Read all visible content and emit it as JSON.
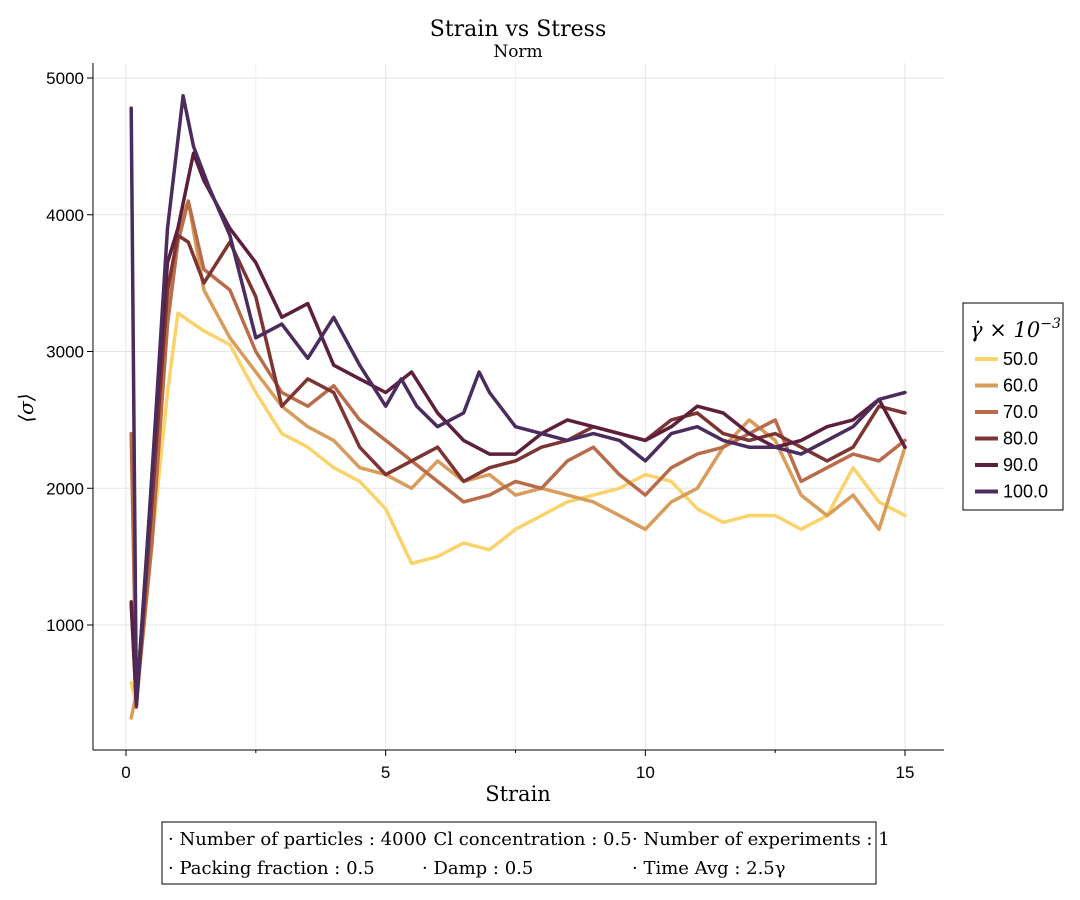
{
  "chart_data": {
    "type": "line",
    "title": "Strain vs Stress",
    "subtitle": "Norm",
    "xlabel": "Strain",
    "ylabel": "⟨σ⟩",
    "xlim": [
      -1.2,
      15.2
    ],
    "ylim": [
      1000,
      5000
    ],
    "x_ticks": [
      "0",
      "5",
      "10",
      "15"
    ],
    "y_ticks": [
      "1000",
      "2000",
      "3000",
      "4000",
      "5000"
    ],
    "grid": true,
    "legend_position": "right",
    "legend_title_main": "γ̇ × 10",
    "legend_title_exp": "−3",
    "series": [
      {
        "name": "50.0",
        "color": "#fbd36b",
        "x": [
          0.1,
          0.2,
          0.5,
          0.8,
          1.0,
          1.5,
          2.0,
          2.5,
          3.0,
          3.5,
          4.0,
          4.5,
          5.0,
          5.5,
          6.0,
          6.5,
          7.0,
          7.5,
          8.0,
          8.5,
          9.0,
          9.5,
          10.0,
          10.5,
          11.0,
          11.5,
          12.0,
          12.5,
          13.0,
          13.5,
          14.0,
          14.5,
          15.0
        ],
        "values": [
          580,
          420,
          1600,
          2700,
          3280,
          3150,
          3050,
          2700,
          2400,
          2300,
          2150,
          2050,
          1850,
          1450,
          1500,
          1600,
          1550,
          1700,
          1800,
          1900,
          1950,
          2000,
          2100,
          2050,
          1850,
          1750,
          1800,
          1800,
          1700,
          1800,
          2150,
          1900,
          1800
        ]
      },
      {
        "name": "60.0",
        "color": "#d89d5a",
        "x": [
          0.1,
          0.2,
          0.5,
          0.8,
          1.0,
          1.2,
          1.5,
          2.0,
          2.5,
          3.0,
          3.5,
          4.0,
          4.5,
          5.0,
          5.5,
          6.0,
          6.5,
          7.0,
          7.5,
          8.0,
          8.5,
          9.0,
          9.5,
          10.0,
          10.5,
          11.0,
          11.5,
          12.0,
          12.5,
          13.0,
          13.5,
          14.0,
          14.5,
          15.0
        ],
        "values": [
          320,
          500,
          1800,
          3300,
          3900,
          4100,
          3450,
          3100,
          2850,
          2600,
          2450,
          2350,
          2150,
          2100,
          2000,
          2200,
          2050,
          2100,
          1950,
          2000,
          1950,
          1900,
          1800,
          1700,
          1900,
          2000,
          2300,
          2500,
          2350,
          1950,
          1800,
          1950,
          1700,
          2300
        ]
      },
      {
        "name": "70.0",
        "color": "#b96c4b",
        "x": [
          0.1,
          0.2,
          0.5,
          0.8,
          1.0,
          1.2,
          1.5,
          2.0,
          2.5,
          3.0,
          3.5,
          4.0,
          4.5,
          5.0,
          5.5,
          6.0,
          6.5,
          7.0,
          7.5,
          8.0,
          8.5,
          9.0,
          9.5,
          10.0,
          10.5,
          11.0,
          11.5,
          12.0,
          12.5,
          13.0,
          13.5,
          14.0,
          14.5,
          15.0
        ],
        "values": [
          2400,
          450,
          1600,
          3200,
          3800,
          4100,
          3600,
          3450,
          3000,
          2700,
          2600,
          2750,
          2500,
          2350,
          2200,
          2050,
          1900,
          1950,
          2050,
          2000,
          2200,
          2300,
          2100,
          1950,
          2150,
          2250,
          2300,
          2400,
          2500,
          2050,
          2150,
          2250,
          2200,
          2350
        ]
      },
      {
        "name": "80.0",
        "color": "#7d3432",
        "x": [
          0.1,
          0.2,
          0.5,
          0.8,
          1.0,
          1.2,
          1.5,
          2.0,
          2.5,
          3.0,
          3.5,
          4.0,
          4.5,
          5.0,
          5.5,
          6.0,
          6.5,
          7.0,
          7.5,
          8.0,
          8.5,
          9.0,
          9.5,
          10.0,
          10.5,
          11.0,
          11.5,
          12.0,
          12.5,
          13.0,
          13.5,
          14.0,
          14.5,
          15.0
        ],
        "values": [
          1170,
          400,
          1900,
          3450,
          3850,
          3800,
          3500,
          3800,
          3400,
          2600,
          2800,
          2700,
          2300,
          2100,
          2200,
          2300,
          2050,
          2150,
          2200,
          2300,
          2350,
          2450,
          2400,
          2350,
          2500,
          2550,
          2400,
          2350,
          2400,
          2300,
          2200,
          2300,
          2600,
          2550
        ]
      },
      {
        "name": "90.0",
        "color": "#5d1f3c",
        "x": [
          0.1,
          0.2,
          0.5,
          0.8,
          1.0,
          1.3,
          1.5,
          2.0,
          2.5,
          3.0,
          3.5,
          4.0,
          4.5,
          5.0,
          5.5,
          6.0,
          6.5,
          7.0,
          7.5,
          8.0,
          8.5,
          9.0,
          9.5,
          10.0,
          10.5,
          11.0,
          11.5,
          12.0,
          12.5,
          13.0,
          13.5,
          14.0,
          14.5,
          15.0
        ],
        "values": [
          1160,
          420,
          2100,
          3650,
          3900,
          4450,
          4250,
          3900,
          3650,
          3250,
          3350,
          2900,
          2800,
          2700,
          2850,
          2550,
          2350,
          2250,
          2250,
          2400,
          2500,
          2450,
          2400,
          2350,
          2450,
          2600,
          2550,
          2400,
          2300,
          2350,
          2450,
          2500,
          2650,
          2300
        ]
      },
      {
        "name": "100.0",
        "color": "#4a2c5e",
        "x": [
          0.1,
          0.2,
          0.4,
          0.8,
          1.1,
          1.3,
          1.6,
          2.0,
          2.5,
          3.0,
          3.5,
          4.0,
          4.5,
          5.0,
          5.3,
          5.6,
          6.0,
          6.5,
          6.8,
          7.0,
          7.5,
          8.0,
          8.5,
          9.0,
          9.5,
          10.0,
          10.5,
          11.0,
          11.5,
          12.0,
          12.5,
          13.0,
          13.5,
          14.0,
          14.5,
          15.0
        ],
        "values": [
          4780,
          420,
          1500,
          3900,
          4870,
          4500,
          4200,
          3850,
          3100,
          3200,
          2950,
          3250,
          2900,
          2600,
          2800,
          2600,
          2450,
          2550,
          2850,
          2700,
          2450,
          2400,
          2350,
          2400,
          2350,
          2200,
          2400,
          2450,
          2350,
          2300,
          2300,
          2250,
          2350,
          2450,
          2650,
          2700
        ]
      }
    ]
  },
  "info_box": {
    "row1": [
      "· Number of particles : 4000",
      "· Cl concentration : 0.5",
      "· Number of experiments : 1"
    ],
    "row2": [
      "· Packing fraction : 0.5",
      "· Damp : 0.5",
      "· Time Avg : 2.5γ"
    ]
  }
}
